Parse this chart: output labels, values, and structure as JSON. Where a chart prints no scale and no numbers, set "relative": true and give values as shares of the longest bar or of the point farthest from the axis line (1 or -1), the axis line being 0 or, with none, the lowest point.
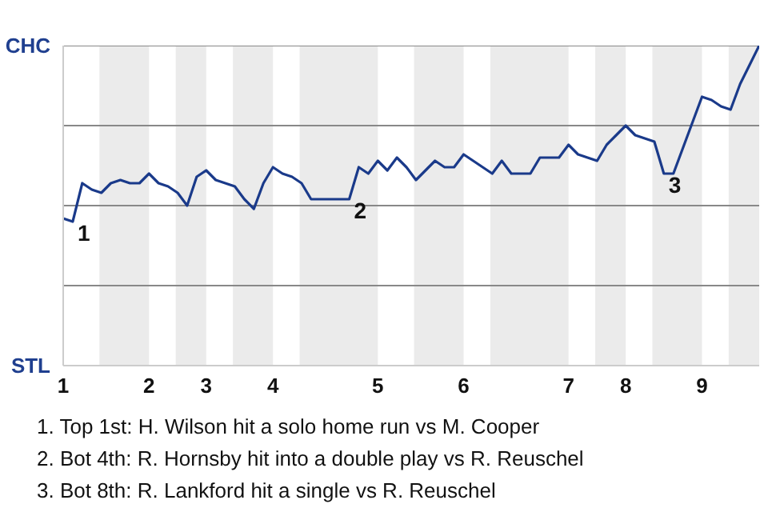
{
  "chart_data": {
    "type": "line",
    "relative": true,
    "categories": [
      "1",
      null,
      null,
      null,
      null,
      null,
      null,
      null,
      null,
      "2",
      null,
      null,
      null,
      null,
      null,
      "3",
      null,
      null,
      null,
      null,
      null,
      null,
      "4",
      null,
      null,
      null,
      null,
      null,
      null,
      null,
      null,
      null,
      null,
      "5",
      null,
      null,
      null,
      null,
      null,
      null,
      null,
      null,
      "6",
      null,
      null,
      null,
      null,
      null,
      null,
      null,
      null,
      null,
      null,
      "7",
      null,
      null,
      null,
      null,
      null,
      "8",
      null,
      null,
      null,
      null,
      null,
      null,
      null,
      "9",
      null,
      null,
      null,
      null,
      null,
      null
    ],
    "series": [
      {
        "color": "#1a3a8a",
        "values": [
          0.46,
          0.45,
          0.57,
          0.55,
          0.54,
          0.57,
          0.58,
          0.57,
          0.57,
          0.6,
          0.57,
          0.56,
          0.54,
          0.5,
          0.59,
          0.61,
          0.58,
          0.57,
          0.56,
          0.52,
          0.49,
          0.57,
          0.62,
          0.6,
          0.59,
          0.57,
          0.52,
          0.52,
          0.52,
          0.52,
          0.52,
          0.62,
          0.6,
          0.64,
          0.61,
          0.65,
          0.62,
          0.58,
          0.61,
          0.64,
          0.62,
          0.62,
          0.66,
          0.64,
          0.62,
          0.6,
          0.64,
          0.6,
          0.6,
          0.6,
          0.65,
          0.65,
          0.65,
          0.69,
          0.66,
          0.65,
          0.64,
          0.69,
          0.72,
          0.75,
          0.72,
          0.71,
          0.7,
          0.6,
          0.6,
          0.68,
          0.76,
          0.84,
          0.83,
          0.81,
          0.8,
          0.88,
          0.94,
          1.0
        ]
      }
    ],
    "marker": "none",
    "line_style": "solid",
    "ref_lines": [
      {
        "axis": "y",
        "value": 0.25,
        "label": null,
        "color": "#888888"
      },
      {
        "axis": "y",
        "value": 0.5,
        "label": null,
        "color": "#888888"
      },
      {
        "axis": "y",
        "value": 0.75,
        "label": null,
        "color": "#888888"
      },
      {
        "axis": "y",
        "value": 1.0,
        "label": null,
        "color": "#888888"
      }
    ],
    "annotations": [
      "CHC",
      "STL",
      "1",
      "2",
      "3",
      "1. Top 1st: H. Wilson hit a solo home run vs M. Cooper",
      "2. Bot 4th: R. Hornsby hit into a double play vs R. Reuschel",
      "3. Bot 8th: R. Lankford hit a single vs R. Reuschel"
    ]
  }
}
